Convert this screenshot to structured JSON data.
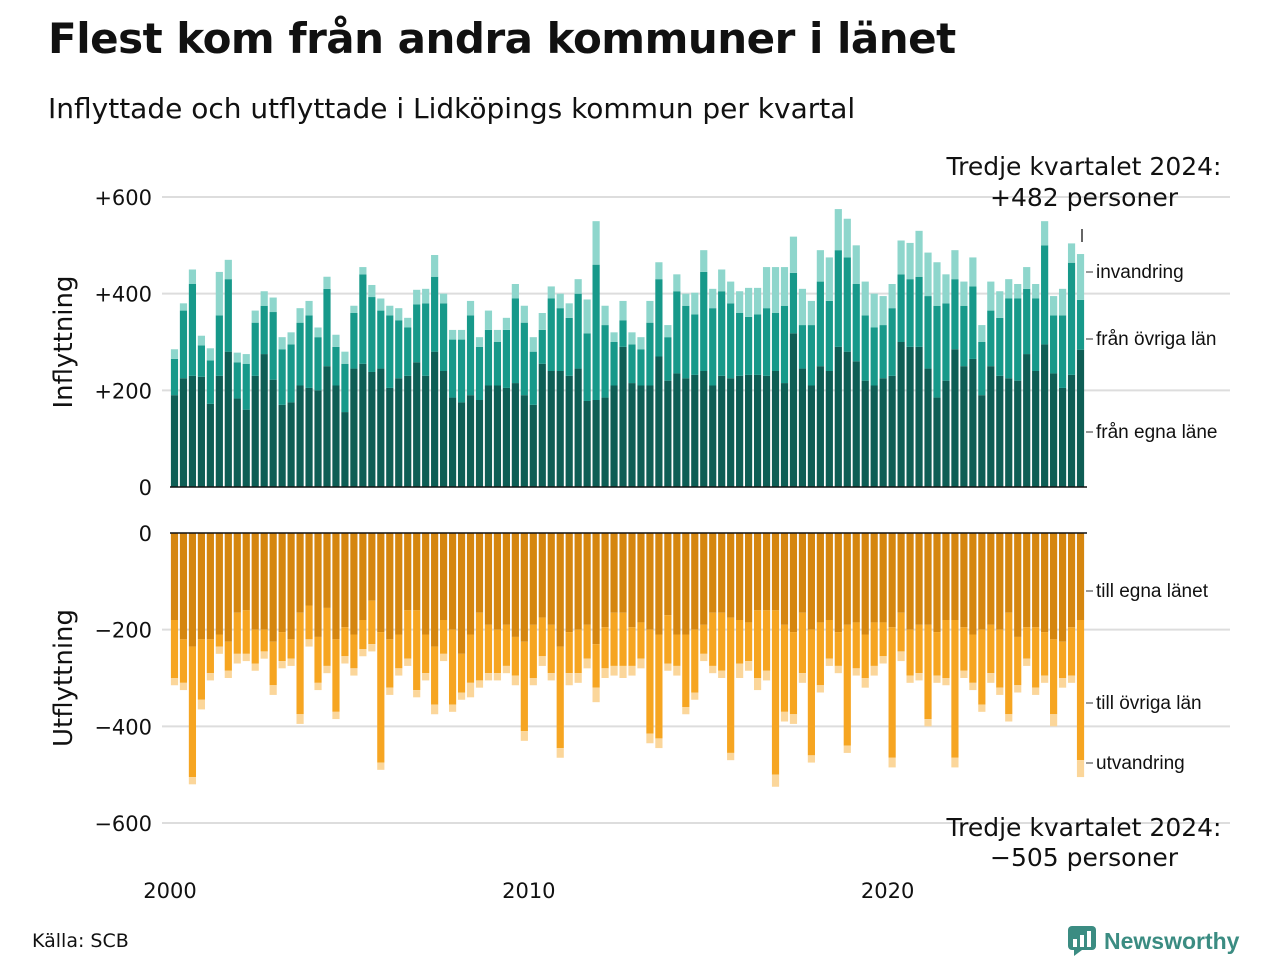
{
  "header": {
    "title": "Flest kom från andra kommuner i länet",
    "subtitle": "Inflyttade och utflyttade i Lidköpings kommun per kvartal"
  },
  "footer": {
    "source": "Källa: SCB",
    "brand": "Newsworthy"
  },
  "colors": {
    "in_own": "#0e5e55",
    "in_other": "#17998a",
    "in_imm": "#8ed6cc",
    "out_own": "#d5860f",
    "out_other": "#f6a521",
    "out_emi": "#fbd69a",
    "grid": "#dddddd",
    "brand": "#3b8c82"
  },
  "chart_data": {
    "type": "bar",
    "stacked": true,
    "x_ticks": [
      "2000",
      "2010",
      "2020"
    ],
    "x_tick_years": [
      2000,
      2010,
      2020
    ],
    "start_year": 2000,
    "quarters_per_year": 4,
    "panels": [
      {
        "name": "inflyttning",
        "ylabel": "Inflyttning",
        "ylim": [
          0,
          600
        ],
        "y_ticks": [
          0,
          200,
          400,
          600
        ],
        "y_tick_labels": [
          "0",
          "+200",
          "+400",
          "+600"
        ],
        "annotation": [
          "Tredje kvartalet 2024:",
          "+482 personer"
        ],
        "series": [
          {
            "name": "från egna läne",
            "values": [
              190,
              225,
              230,
              228,
              172,
              230,
              280,
              183,
              160,
              230,
              275,
              222,
              170,
              175,
              210,
              205,
              200,
              250,
              210,
              155,
              245,
              255,
              238,
              245,
              205,
              225,
              230,
              258,
              230,
              280,
              240,
              185,
              175,
              190,
              180,
              210,
              210,
              205,
              215,
              190,
              170,
              255,
              240,
              240,
              230,
              245,
              178,
              180,
              185,
              210,
              290,
              215,
              210,
              210,
              270,
              220,
              235,
              225,
              232,
              240,
              210,
              230,
              225,
              230,
              232,
              232,
              230,
              240,
              215,
              318,
              245,
              210,
              250,
              240,
              290,
              280,
              260,
              220,
              210,
              225,
              230,
              300,
              290,
              290,
              245,
              185,
              220,
              285,
              250,
              265,
              190,
              250,
              230,
              225,
              220,
              275,
              240,
              295,
              235,
              205,
              232,
              284
            ]
          },
          {
            "name": "från övriga län",
            "values": [
              75,
              140,
              190,
              65,
              90,
              125,
              150,
              75,
              95,
              110,
              100,
              140,
              115,
              120,
              130,
              150,
              110,
              160,
              80,
              100,
              115,
              185,
              155,
              120,
              150,
              120,
              100,
              120,
              150,
              155,
              140,
              120,
              130,
              165,
              110,
              115,
              90,
              120,
              175,
              150,
              110,
              70,
              150,
              130,
              120,
              155,
              140,
              280,
              150,
              90,
              55,
              80,
              75,
              130,
              160,
              90,
              170,
              150,
              125,
              205,
              160,
              175,
              155,
              130,
              120,
              125,
              140,
              120,
              160,
              125,
              90,
              125,
              175,
              145,
              200,
              195,
              160,
              135,
              120,
              110,
              140,
              140,
              140,
              145,
              150,
              190,
              160,
              145,
              125,
              150,
              110,
              115,
              120,
              165,
              170,
              135,
              150,
              205,
              120,
              150,
              232,
              103
            ]
          },
          {
            "name": "invandring",
            "values": [
              20,
              15,
              30,
              20,
              25,
              90,
              40,
              20,
              20,
              25,
              30,
              30,
              25,
              25,
              30,
              30,
              20,
              25,
              25,
              25,
              15,
              15,
              25,
              25,
              20,
              25,
              20,
              30,
              30,
              45,
              20,
              20,
              20,
              30,
              20,
              40,
              25,
              25,
              30,
              35,
              30,
              35,
              25,
              30,
              30,
              30,
              70,
              90,
              40,
              20,
              40,
              25,
              25,
              45,
              35,
              25,
              35,
              25,
              45,
              45,
              40,
              45,
              45,
              45,
              60,
              55,
              85,
              95,
              80,
              75,
              75,
              50,
              65,
              90,
              85,
              80,
              80,
              70,
              70,
              60,
              50,
              70,
              75,
              95,
              90,
              90,
              60,
              60,
              50,
              60,
              35,
              60,
              55,
              40,
              30,
              45,
              30,
              50,
              40,
              55,
              40,
              95
            ]
          }
        ]
      },
      {
        "name": "utflyttning",
        "ylabel": "Utflyttning",
        "ylim": [
          -600,
          0
        ],
        "y_ticks": [
          0,
          -200,
          -400,
          -600
        ],
        "y_tick_labels": [
          "0",
          "−200",
          "−400",
          "−600"
        ],
        "annotation": [
          "Tredje kvartalet 2024:",
          "−505 personer"
        ],
        "series": [
          {
            "name": "till egna länet",
            "values": [
              -180,
              -220,
              -235,
              -220,
              -220,
              -210,
              -225,
              -165,
              -160,
              -200,
              -200,
              -225,
              -205,
              -220,
              -165,
              -150,
              -215,
              -155,
              -220,
              -195,
              -210,
              -180,
              -140,
              -205,
              -220,
              -210,
              -160,
              -160,
              -210,
              -235,
              -180,
              -200,
              -250,
              -210,
              -165,
              -190,
              -200,
              -190,
              -215,
              -225,
              -190,
              -175,
              -190,
              -235,
              -205,
              -200,
              -190,
              -230,
              -195,
              -165,
              -165,
              -195,
              -185,
              -200,
              -210,
              -170,
              -210,
              -210,
              -200,
              -190,
              -165,
              -165,
              -175,
              -180,
              -185,
              -160,
              -160,
              -160,
              -190,
              -205,
              -165,
              -200,
              -185,
              -180,
              -205,
              -190,
              -185,
              -210,
              -185,
              -185,
              -195,
              -165,
              -200,
              -190,
              -190,
              -205,
              -180,
              -180,
              -195,
              -210,
              -200,
              -190,
              -200,
              -165,
              -215,
              -195,
              -195,
              -205,
              -220,
              -225,
              -195,
              -180
            ]
          },
          {
            "name": "till övriga län",
            "values": [
              -120,
              -90,
              -270,
              -125,
              -70,
              -25,
              -60,
              -85,
              -90,
              -70,
              -45,
              -90,
              -60,
              -40,
              -210,
              -70,
              -95,
              -120,
              -150,
              -60,
              -70,
              -60,
              -90,
              -270,
              -100,
              -70,
              -100,
              -165,
              -80,
              -120,
              -70,
              -155,
              -80,
              -100,
              -140,
              -100,
              -90,
              -85,
              -80,
              -185,
              -110,
              -80,
              -100,
              -210,
              -85,
              -90,
              -70,
              -90,
              -85,
              -110,
              -110,
              -80,
              -75,
              -215,
              -215,
              -100,
              -65,
              -150,
              -130,
              -60,
              -110,
              -120,
              -280,
              -90,
              -80,
              -140,
              -125,
              -340,
              -180,
              -170,
              -125,
              -260,
              -130,
              -80,
              -70,
              -250,
              -95,
              -90,
              -90,
              -70,
              -270,
              -80,
              -95,
              -100,
              -195,
              -90,
              -120,
              -285,
              -90,
              -100,
              -155,
              -100,
              -120,
              -210,
              -100,
              -65,
              -125,
              -90,
              -155,
              -75,
              -100,
              -290
            ]
          },
          {
            "name": "utvandring",
            "values": [
              -15,
              -15,
              -15,
              -20,
              -15,
              -15,
              -15,
              -20,
              -15,
              -15,
              -15,
              -20,
              -15,
              -15,
              -20,
              -15,
              -15,
              -15,
              -15,
              -15,
              -15,
              -15,
              -15,
              -15,
              -15,
              -15,
              -15,
              -15,
              -15,
              -20,
              -15,
              -15,
              -15,
              -30,
              -15,
              -15,
              -15,
              -15,
              -20,
              -20,
              -15,
              -20,
              -15,
              -20,
              -25,
              -20,
              -20,
              -30,
              -20,
              -20,
              -25,
              -20,
              -20,
              -20,
              -20,
              -15,
              -20,
              -15,
              -15,
              -15,
              -15,
              -15,
              -15,
              -30,
              -20,
              -25,
              -20,
              -25,
              -20,
              -20,
              -20,
              -15,
              -15,
              -15,
              -15,
              -15,
              -15,
              -20,
              -20,
              -15,
              -20,
              -20,
              -15,
              -15,
              -15,
              -15,
              -15,
              -20,
              -15,
              -15,
              -15,
              -20,
              -15,
              -15,
              -15,
              -15,
              -15,
              -15,
              -25,
              -20,
              -15,
              -35
            ]
          }
        ]
      }
    ]
  }
}
